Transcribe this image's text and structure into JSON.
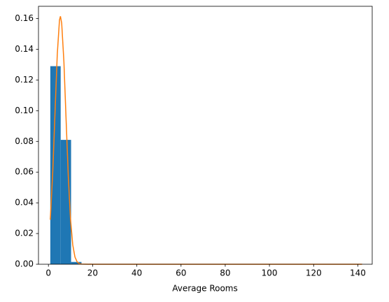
{
  "chart_data": {
    "type": "histogram",
    "x_label": "Average Rooms",
    "bins": [
      0.846,
      5.548,
      10.25,
      14.952,
      19.654,
      24.356,
      29.058,
      33.76,
      38.462,
      43.164,
      47.866,
      52.568,
      57.27,
      61.972,
      66.674,
      71.376,
      76.078,
      80.78,
      85.482,
      90.184,
      94.886,
      99.588,
      104.29,
      108.992,
      113.694,
      118.396,
      123.098,
      127.8,
      132.502,
      137.204,
      141.906
    ],
    "values": [
      0.129,
      0.081,
      0.0015,
      0.0002,
      0.0001,
      0.0001,
      0,
      0,
      0,
      0,
      0,
      0,
      0,
      0,
      0,
      0,
      0,
      0,
      0,
      0,
      0,
      0,
      0,
      0,
      0,
      0,
      0,
      0,
      0,
      0
    ],
    "color": "#1f77b4",
    "curve": {
      "x": [
        0.846,
        2,
        3,
        4,
        5,
        5.43,
        6,
        7,
        8,
        9,
        10,
        11,
        12,
        13,
        14,
        15,
        20,
        40,
        80,
        141.906
      ],
      "values": [
        0.029,
        0.0615,
        0.0995,
        0.1366,
        0.159,
        0.1615,
        0.157,
        0.132,
        0.094,
        0.0569,
        0.0292,
        0.0127,
        0.0047,
        0.0015,
        0.0004,
        0.0001,
        0,
        0,
        0,
        0
      ],
      "color": "#ff7f0e"
    },
    "xlim": [
      -4.5,
      146.5
    ],
    "ylim": [
      0,
      0.168
    ],
    "xticks": [
      0,
      20,
      40,
      60,
      80,
      100,
      120,
      140
    ],
    "yticks": [
      {
        "value": 0,
        "label": "0.00"
      },
      {
        "value": 0.02,
        "label": "0.02"
      },
      {
        "value": 0.04,
        "label": "0.04"
      },
      {
        "value": 0.06,
        "label": "0.06"
      },
      {
        "value": 0.08,
        "label": "0.08"
      },
      {
        "value": 0.1,
        "label": "0.10"
      },
      {
        "value": 0.12,
        "label": "0.12"
      },
      {
        "value": 0.14,
        "label": "0.14"
      },
      {
        "value": 0.16,
        "label": "0.16"
      }
    ]
  }
}
